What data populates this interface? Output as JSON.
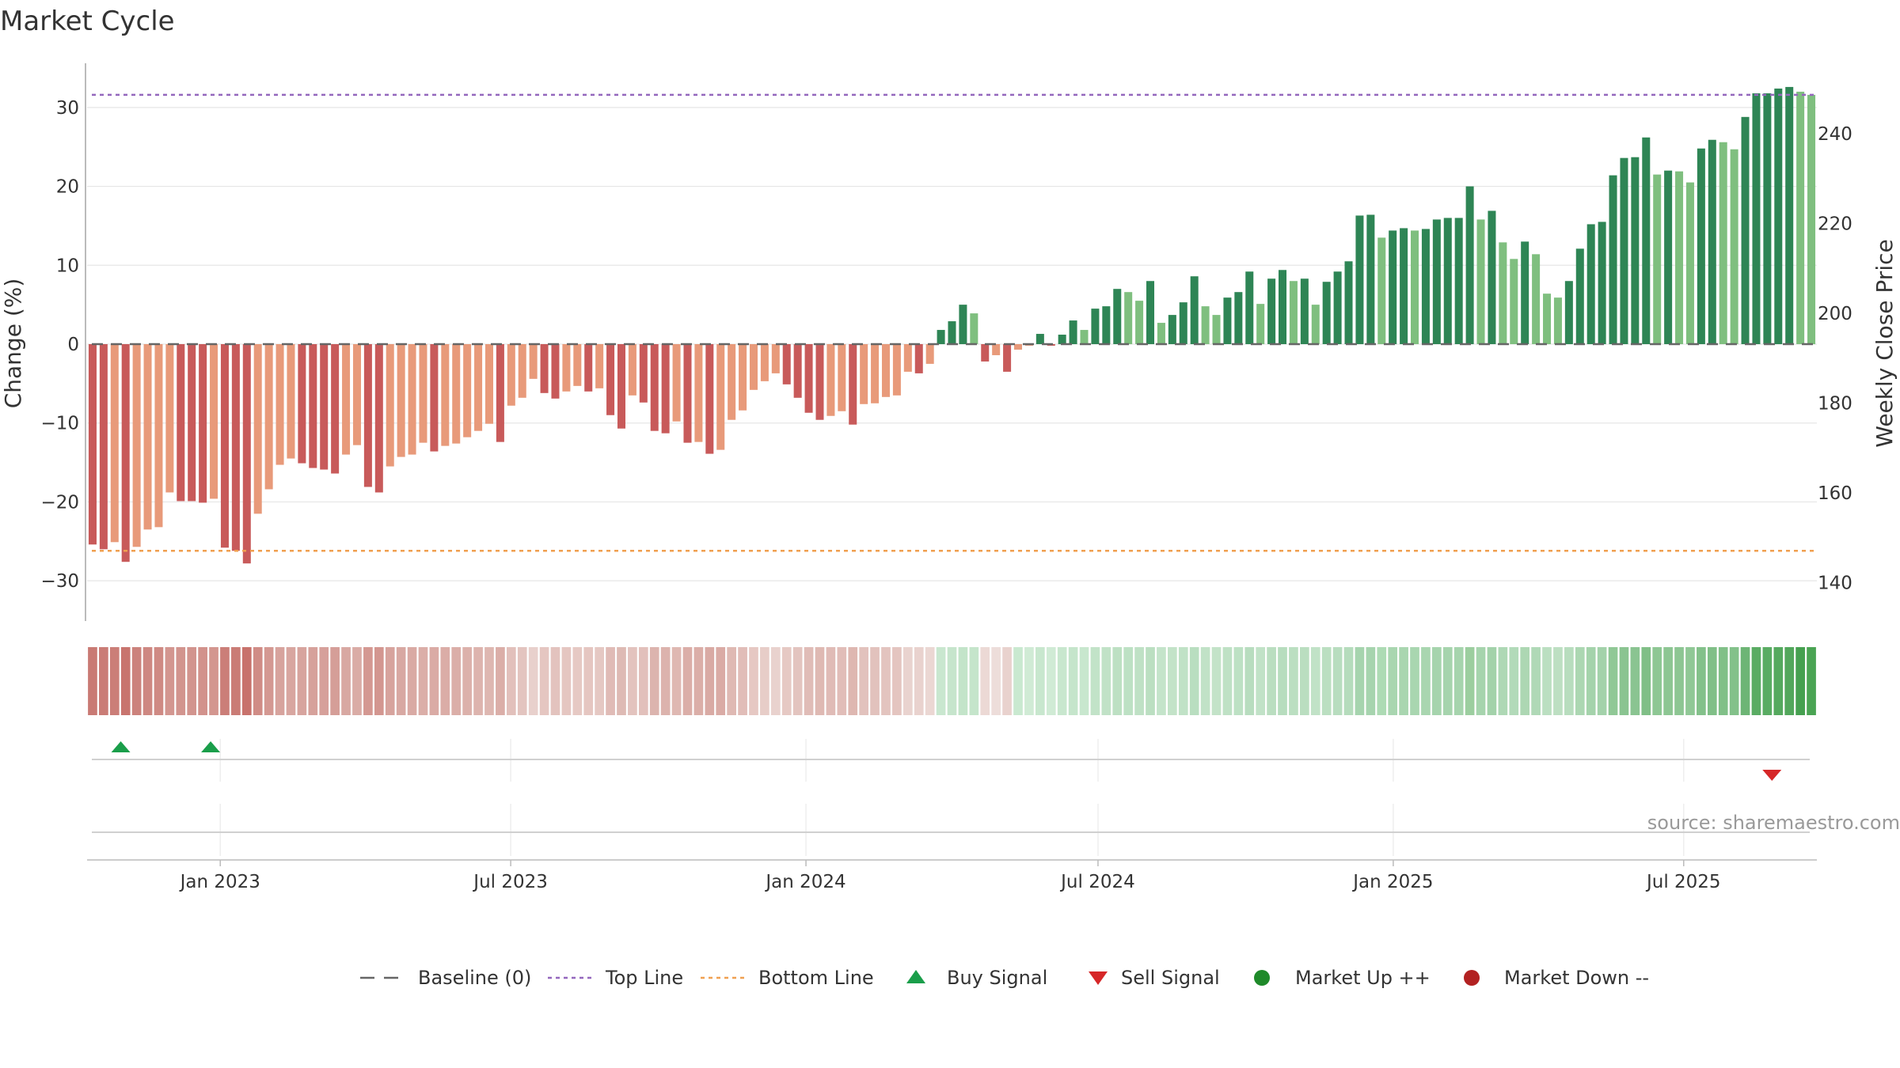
{
  "chart_data": {
    "type": "bar",
    "title": "Market Cycle",
    "ylabel_left": "Change (%)",
    "ylabel_right": "Weekly Close Price",
    "ylim_left": [
      -35,
      35
    ],
    "ylim_right": [
      131.6,
      254.6
    ],
    "yticks_left": [
      30,
      20,
      10,
      0,
      -10,
      -20,
      -30
    ],
    "yticks_left_labels": [
      "30",
      "20",
      "10",
      "0",
      "−10",
      "−20",
      "−30"
    ],
    "yticks_right": [
      240,
      220,
      200,
      180,
      160,
      140
    ],
    "x_start": "2022-10-10",
    "x_end": "2025-09-22",
    "x_ticks": [
      {
        "date": "2023-01-01",
        "label": "Jan 2023"
      },
      {
        "date": "2023-07-01",
        "label": "Jul 2023"
      },
      {
        "date": "2024-01-01",
        "label": "Jan 2024"
      },
      {
        "date": "2024-07-01",
        "label": "Jul 2024"
      },
      {
        "date": "2025-01-01",
        "label": "Jan 2025"
      },
      {
        "date": "2025-07-01",
        "label": "Jul 2025"
      }
    ],
    "reference_lines": [
      {
        "name": "Baseline (0)",
        "value": 0,
        "color": "#666666",
        "style": "dashed"
      },
      {
        "name": "Top Line",
        "value": 31.6,
        "color": "#9467bd",
        "style": "dotted"
      },
      {
        "name": "Bottom Line",
        "value": -26.2,
        "color": "#f0a050",
        "style": "dotted"
      }
    ],
    "bar_colors": {
      "down_strong": "#c85a5a",
      "down_weak": "#e89a7a",
      "up_strong": "#2e8555",
      "up_weak": "#7fbf7f"
    },
    "weekly_change": [
      -25.4,
      -26.0,
      -25.1,
      -27.6,
      -25.7,
      -23.5,
      -23.2,
      -18.8,
      -19.9,
      -19.9,
      -20.1,
      -19.6,
      -25.8,
      -26.2,
      -27.8,
      -21.5,
      -18.4,
      -15.3,
      -14.5,
      -15.1,
      -15.7,
      -15.9,
      -16.4,
      -14.0,
      -12.8,
      -18.1,
      -18.8,
      -15.5,
      -14.3,
      -14.0,
      -12.5,
      -13.6,
      -12.9,
      -12.6,
      -11.8,
      -11.0,
      -10.1,
      -12.4,
      -7.8,
      -6.8,
      -4.4,
      -6.2,
      -6.9,
      -6.0,
      -5.3,
      -6.0,
      -5.6,
      -9.0,
      -10.7,
      -6.5,
      -7.4,
      -11.0,
      -11.3,
      -9.8,
      -12.5,
      -12.4,
      -13.9,
      -13.4,
      -9.6,
      -8.4,
      -5.8,
      -4.7,
      -3.7,
      -5.1,
      -6.8,
      -8.7,
      -9.6,
      -9.1,
      -8.5,
      -10.2,
      -7.6,
      -7.5,
      -6.7,
      -6.5,
      -3.5,
      -3.7,
      -2.5,
      1.8,
      2.9,
      5.0,
      3.9,
      -2.2,
      -1.4,
      -3.5,
      -0.7,
      -0.2,
      1.3,
      -0.2,
      1.2,
      3.0,
      1.8,
      4.5,
      4.8,
      7.0,
      6.6,
      5.5,
      8.0,
      2.7,
      3.7,
      5.3,
      8.6,
      4.8,
      3.7,
      5.9,
      6.6,
      9.2,
      5.1,
      8.3,
      9.4,
      8.0,
      8.3,
      5.0,
      7.9,
      9.2,
      10.5,
      16.3,
      16.4,
      13.5,
      14.4,
      14.7,
      14.4,
      14.6,
      15.8,
      16.0,
      16.0,
      20.0,
      15.8,
      16.9,
      12.9,
      10.8,
      13.0,
      11.4,
      6.4,
      5.9,
      8.0,
      12.1,
      15.2,
      15.5,
      21.4,
      23.6,
      23.7,
      26.2,
      21.5,
      22.0,
      21.9,
      20.5,
      24.8,
      25.9,
      25.6,
      24.7,
      28.8,
      31.8,
      31.8,
      32.4,
      32.6,
      32.0,
      31.6
    ],
    "regime_strip_colors": [
      "#c97a74",
      "#ca7c76",
      "#cb7e78",
      "#c8746e",
      "#cc827c",
      "#ce8882",
      "#cf8a84",
      "#d39690",
      "#d2948e",
      "#d2948e",
      "#d2928c",
      "#d3968f",
      "#cb7e78",
      "#ca7c76",
      "#c8726c",
      "#d08c86",
      "#d49892",
      "#d7a39d",
      "#d8a6a0",
      "#d7a49e",
      "#d6a19b",
      "#d6a09a",
      "#d59e98",
      "#d8a8a2",
      "#daaca6",
      "#d49892",
      "#d39690",
      "#d7a39d",
      "#d8a8a2",
      "#d9aaa4",
      "#dbaea8",
      "#daaba5",
      "#dbada7",
      "#dbaea8",
      "#dcb1ab",
      "#ddb4ae",
      "#deb7b1",
      "#dbaea8",
      "#e2c0bb",
      "#e3c4bf",
      "#e8d0cc",
      "#e5c6c1",
      "#e3c3be",
      "#e5c6c1",
      "#e6c9c4",
      "#e5c6c1",
      "#e5c8c3",
      "#e0bbb6",
      "#debab4",
      "#e3c3be",
      "#e2c0bb",
      "#dcb4ae",
      "#dcb3ad",
      "#dfb8b2",
      "#dbaea8",
      "#dbaea8",
      "#d9aaa4",
      "#daaba5",
      "#dfb9b3",
      "#e1bdb8",
      "#e6c8c3",
      "#e7cdc8",
      "#e9d2ce",
      "#e6c9c4",
      "#e3c4bf",
      "#e0bcb7",
      "#dfb9b3",
      "#e0bbb6",
      "#e1bdb8",
      "#deb7b1",
      "#e2c2bd",
      "#e2c2bd",
      "#e3c4bf",
      "#e4c5c0",
      "#e9d3cf",
      "#e9d2ce",
      "#ebd7d3",
      "#c9e7cf",
      "#c6e5cc",
      "#c3e4c9",
      "#c5e5cb",
      "#ecd9d5",
      "#edddda",
      "#e9d2ce",
      "#c9e9d0",
      "#d0ebd5",
      "#c8e7ce",
      "#d0ebd5",
      "#c8e7ce",
      "#c5e5cb",
      "#c8e7ce",
      "#c2e3c8",
      "#c1e2c7",
      "#bde0c3",
      "#bde1c4",
      "#bfe1c5",
      "#bbdfc1",
      "#c4e4ca",
      "#c3e3c8",
      "#c0e2c6",
      "#b9dec0",
      "#c1e2c7",
      "#c3e3c8",
      "#bfe1c5",
      "#bde1c4",
      "#b8ddbf",
      "#c1e2c7",
      "#badec0",
      "#b7ddbe",
      "#bbdfc1",
      "#badec0",
      "#c1e2c7",
      "#bbdfc1",
      "#b8ddbf",
      "#b5dcbc",
      "#a6d4ae",
      "#a6d4ae",
      "#addbb4",
      "#a9d6b0",
      "#a9d6b0",
      "#a9d6b0",
      "#a9d6b0",
      "#a6d4ad",
      "#a6d4ad",
      "#a6d4ad",
      "#9cce9f",
      "#a6d4ad",
      "#a3d2aa",
      "#aed8b5",
      "#b2dab9",
      "#add7b3",
      "#b0d9b7",
      "#bbdfc1",
      "#bddfc2",
      "#b8ddbe",
      "#acd7b2",
      "#a4d3ab",
      "#a3d2aa",
      "#90c896",
      "#8ac491",
      "#8ac491",
      "#80bf87",
      "#8ec794",
      "#8dc693",
      "#8dc693",
      "#90c896",
      "#83c18a",
      "#80bf87",
      "#81c088",
      "#83c18a",
      "#6db575",
      "#5aac63",
      "#5aac63",
      "#55a95e",
      "#52a75b",
      "#45a04f",
      "#4aa453"
    ],
    "buy_signals": [
      "2022-10-31",
      "2022-12-26"
    ],
    "sell_signals": [
      "2025-08-25"
    ],
    "source": "source: sharemaestro.com",
    "legend": [
      {
        "label": "Baseline (0)",
        "marker": "dash",
        "color": "#666666"
      },
      {
        "label": "Top Line",
        "marker": "dotted-line",
        "color": "#9467bd"
      },
      {
        "label": "Bottom Line",
        "marker": "dotted-line",
        "color": "#f0a050"
      },
      {
        "label": "Buy Signal",
        "marker": "triangle-up",
        "color": "#1a9e4a"
      },
      {
        "label": "Sell Signal",
        "marker": "triangle-down",
        "color": "#d62728"
      },
      {
        "label": "Market Up ++",
        "marker": "circle",
        "color": "#1f8a2a"
      },
      {
        "label": "Market Down --",
        "marker": "circle",
        "color": "#b22222"
      }
    ],
    "grid": true,
    "legend_position": "bottom-center"
  }
}
